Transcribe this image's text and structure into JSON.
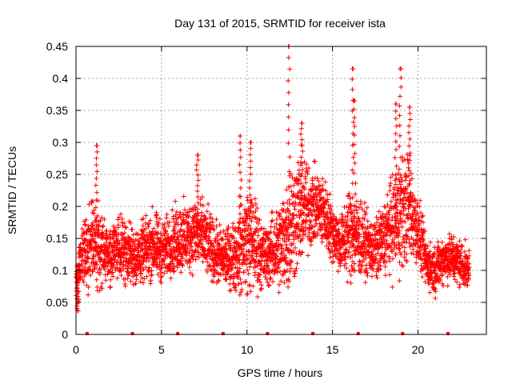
{
  "chart_data": {
    "type": "scatter",
    "title": "Day 131 of 2015, SRMTID for receiver ista",
    "xlabel": "GPS time / hours",
    "ylabel": "SRMTID / TECUs",
    "xlim": [
      0,
      24
    ],
    "ylim": [
      0,
      0.45
    ],
    "xticks": [
      0,
      5,
      10,
      15,
      20
    ],
    "xtick_labels": [
      "0",
      "5",
      "10",
      "15",
      "20"
    ],
    "yticks": [
      0,
      0.05,
      0.1,
      0.15,
      0.2,
      0.25,
      0.3,
      0.35,
      0.4,
      0.45
    ],
    "ytick_labels": [
      "0",
      "0.05",
      "0.1",
      "0.15",
      "0.2",
      "0.25",
      "0.3",
      "0.35",
      "0.4",
      "0.45"
    ],
    "grid": true,
    "marker": "+",
    "marker_color": "#ff0000",
    "axis_markers_x": [
      0.65,
      3.3,
      5.95,
      8.6,
      11.2,
      13.85,
      16.5,
      19.1,
      21.75
    ],
    "envelope": {
      "x": [
        0,
        0.5,
        1.0,
        1.5,
        2.0,
        2.5,
        3.0,
        3.5,
        4.0,
        4.5,
        5.0,
        5.5,
        6.0,
        6.5,
        7.0,
        7.5,
        8.0,
        8.5,
        9.0,
        9.5,
        10.0,
        10.5,
        11.0,
        11.5,
        12.0,
        12.5,
        13.0,
        13.5,
        14.0,
        14.5,
        15.0,
        15.5,
        16.0,
        16.5,
        17.0,
        17.5,
        18.0,
        18.5,
        19.0,
        19.5,
        20.0,
        20.5,
        21.0,
        21.5,
        22.0,
        22.5,
        23.0
      ],
      "center": [
        0.085,
        0.13,
        0.14,
        0.13,
        0.12,
        0.14,
        0.13,
        0.12,
        0.13,
        0.14,
        0.13,
        0.14,
        0.15,
        0.15,
        0.16,
        0.15,
        0.13,
        0.12,
        0.12,
        0.13,
        0.15,
        0.14,
        0.12,
        0.13,
        0.14,
        0.17,
        0.19,
        0.2,
        0.2,
        0.19,
        0.16,
        0.14,
        0.16,
        0.15,
        0.14,
        0.13,
        0.15,
        0.17,
        0.19,
        0.2,
        0.16,
        0.11,
        0.1,
        0.12,
        0.12,
        0.11,
        0.1
      ],
      "spread": [
        0.03,
        0.06,
        0.08,
        0.06,
        0.05,
        0.05,
        0.05,
        0.05,
        0.05,
        0.06,
        0.05,
        0.05,
        0.06,
        0.06,
        0.06,
        0.06,
        0.05,
        0.05,
        0.05,
        0.07,
        0.09,
        0.08,
        0.05,
        0.06,
        0.08,
        0.11,
        0.1,
        0.08,
        0.06,
        0.06,
        0.05,
        0.05,
        0.08,
        0.07,
        0.05,
        0.05,
        0.06,
        0.08,
        0.1,
        0.09,
        0.06,
        0.04,
        0.04,
        0.04,
        0.04,
        0.04,
        0.03
      ]
    },
    "peaks": [
      {
        "x": 1.2,
        "y": 0.295
      },
      {
        "x": 9.6,
        "y": 0.31
      },
      {
        "x": 10.2,
        "y": 0.3
      },
      {
        "x": 12.45,
        "y": 0.45
      },
      {
        "x": 13.2,
        "y": 0.33
      },
      {
        "x": 16.2,
        "y": 0.415
      },
      {
        "x": 16.3,
        "y": 0.365
      },
      {
        "x": 18.7,
        "y": 0.36
      },
      {
        "x": 18.95,
        "y": 0.415
      },
      {
        "x": 19.5,
        "y": 0.355
      },
      {
        "x": 7.1,
        "y": 0.28
      },
      {
        "x": 0.1,
        "y": 0.037
      }
    ]
  }
}
